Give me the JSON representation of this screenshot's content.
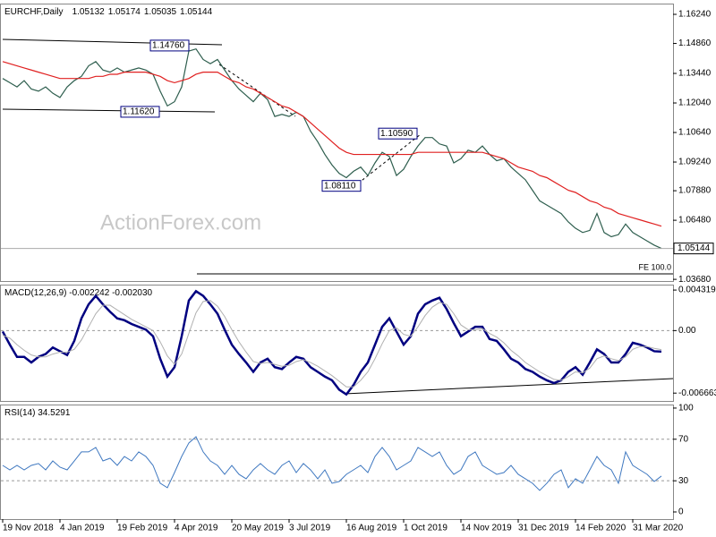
{
  "chart_data": [
    {
      "type": "line",
      "title": "EURCHF,Daily",
      "ohlc_labels": [
        "1.05132",
        "1.05174",
        "1.05035",
        "1.05144"
      ],
      "watermark": "ActionForex.com",
      "ylim": [
        1.036,
        1.1675
      ],
      "yticks": [
        {
          "value": 1.1624,
          "label": "1.16240"
        },
        {
          "value": 1.1486,
          "label": "1.14860"
        },
        {
          "value": 1.1344,
          "label": "1.13440"
        },
        {
          "value": 1.1204,
          "label": "1.12040"
        },
        {
          "value": 1.1064,
          "label": "1.10640"
        },
        {
          "value": 1.0924,
          "label": "1.09240"
        },
        {
          "value": 1.0788,
          "label": "1.07880"
        },
        {
          "value": 1.0648,
          "label": "1.06480"
        },
        {
          "value": 1.0368,
          "label": "1.03680"
        }
      ],
      "last": {
        "value": 1.05144,
        "label": "1.05144"
      },
      "fe_label": "FE 100.0",
      "annotations": [
        {
          "value": 1.1476,
          "label": "1.14760"
        },
        {
          "value": 1.1162,
          "label": "1.11620"
        },
        {
          "value": 1.1059,
          "label": "1.10590"
        },
        {
          "value": 1.0811,
          "label": "1.08110"
        }
      ],
      "series": [
        {
          "color": "#2e5e4e",
          "values": [
            1.132,
            1.13,
            1.128,
            1.131,
            1.127,
            1.126,
            1.128,
            1.125,
            1.123,
            1.128,
            1.131,
            1.133,
            1.138,
            1.14,
            1.136,
            1.135,
            1.137,
            1.135,
            1.136,
            1.137,
            1.136,
            1.134,
            1.126,
            1.119,
            1.121,
            1.128,
            1.145,
            1.146,
            1.141,
            1.139,
            1.141,
            1.136,
            1.131,
            1.127,
            1.124,
            1.121,
            1.125,
            1.122,
            1.114,
            1.115,
            1.114,
            1.116,
            1.114,
            1.107,
            1.102,
            1.096,
            1.091,
            1.087,
            1.085,
            1.088,
            1.09,
            1.086,
            1.092,
            1.097,
            1.095,
            1.086,
            1.089,
            1.095,
            1.1,
            1.104,
            1.104,
            1.101,
            1.1,
            1.092,
            1.094,
            1.098,
            1.097,
            1.1,
            1.096,
            1.093,
            1.094,
            1.09,
            1.087,
            1.084,
            1.079,
            1.074,
            1.072,
            1.07,
            1.068,
            1.064,
            1.061,
            1.059,
            1.06,
            1.068,
            1.059,
            1.057,
            1.058,
            1.063,
            1.059,
            1.057,
            1.055,
            1.053,
            1.05144
          ]
        },
        {
          "color": "#e02020",
          "values": [
            1.14,
            1.139,
            1.138,
            1.137,
            1.136,
            1.135,
            1.134,
            1.133,
            1.132,
            1.132,
            1.132,
            1.132,
            1.132,
            1.133,
            1.133,
            1.134,
            1.134,
            1.135,
            1.135,
            1.135,
            1.135,
            1.134,
            1.133,
            1.131,
            1.13,
            1.131,
            1.132,
            1.134,
            1.135,
            1.135,
            1.135,
            1.133,
            1.131,
            1.13,
            1.128,
            1.127,
            1.125,
            1.123,
            1.121,
            1.119,
            1.118,
            1.116,
            1.114,
            1.111,
            1.108,
            1.105,
            1.102,
            1.099,
            1.097,
            1.096,
            1.096,
            1.096,
            1.096,
            1.096,
            1.096,
            1.096,
            1.096,
            1.096,
            1.097,
            1.097,
            1.097,
            1.097,
            1.097,
            1.097,
            1.097,
            1.097,
            1.097,
            1.097,
            1.096,
            1.095,
            1.094,
            1.092,
            1.09,
            1.089,
            1.088,
            1.086,
            1.085,
            1.083,
            1.081,
            1.079,
            1.078,
            1.076,
            1.074,
            1.073,
            1.071,
            1.07,
            1.068,
            1.067,
            1.066,
            1.065,
            1.064,
            1.063,
            1.062
          ]
        }
      ]
    },
    {
      "type": "line",
      "title": "MACD(12,26,9) -0.002242 -0.002030",
      "ylim": [
        -0.0075,
        0.0049
      ],
      "yticks": [
        0.004319,
        {
          "value": 0,
          "label": "0.00"
        },
        -0.006663
      ],
      "series": [
        {
          "color": "#000080",
          "values": [
            -0.0001,
            -0.0015,
            -0.0028,
            -0.0028,
            -0.0034,
            -0.0028,
            -0.0025,
            -0.0018,
            -0.0022,
            -0.0026,
            -0.0011,
            0.0013,
            0.0028,
            0.0037,
            0.0028,
            0.002,
            0.0013,
            0.0011,
            0.0007,
            0.0004,
            0.0001,
            -0.0006,
            -0.003,
            -0.0049,
            -0.0039,
            -0.0006,
            0.0032,
            0.0042,
            0.0037,
            0.0028,
            0.0018,
            0.0001,
            -0.0015,
            -0.0025,
            -0.0034,
            -0.0044,
            -0.0034,
            -0.003,
            -0.0039,
            -0.0041,
            -0.0034,
            -0.0028,
            -0.003,
            -0.0039,
            -0.0044,
            -0.0049,
            -0.0053,
            -0.0063,
            -0.0068,
            -0.0058,
            -0.0044,
            -0.0034,
            -0.0015,
            0.0004,
            0.0013,
            -0.0001,
            -0.0015,
            -0.0006,
            0.0018,
            0.0028,
            0.0032,
            0.0035,
            0.0023,
            0.0008,
            -0.0006,
            -0.0001,
            0.0004,
            0.0004,
            -0.0009,
            -0.0011,
            -0.002,
            -0.003,
            -0.0034,
            -0.0041,
            -0.0044,
            -0.0049,
            -0.0053,
            -0.0056,
            -0.0053,
            -0.0044,
            -0.0039,
            -0.0047,
            -0.0034,
            -0.002,
            -0.0025,
            -0.0034,
            -0.0034,
            -0.0025,
            -0.0013,
            -0.0015,
            -0.0018,
            -0.0022,
            -0.002242
          ]
        },
        {
          "color": "#b0b0b0",
          "values": [
            -0.0005,
            -0.0008,
            -0.0015,
            -0.0021,
            -0.0026,
            -0.0028,
            -0.0028,
            -0.0025,
            -0.0023,
            -0.0023,
            -0.002,
            -0.001,
            0.0004,
            0.0018,
            0.0027,
            0.0027,
            0.0022,
            0.0017,
            0.0012,
            0.0008,
            0.0004,
            0.0,
            -0.0012,
            -0.0027,
            -0.0036,
            -0.0025,
            -0.0003,
            0.0019,
            0.0031,
            0.0032,
            0.0026,
            0.0015,
            0.0001,
            -0.0012,
            -0.0023,
            -0.0033,
            -0.0035,
            -0.0034,
            -0.0036,
            -0.0038,
            -0.0037,
            -0.0033,
            -0.0031,
            -0.0034,
            -0.0038,
            -0.0043,
            -0.0048,
            -0.0054,
            -0.006,
            -0.006,
            -0.0053,
            -0.0044,
            -0.003,
            -0.0014,
            0.0,
            0.0003,
            -0.0004,
            -0.0006,
            0.0004,
            0.0016,
            0.0025,
            0.003,
            0.0028,
            0.0018,
            0.0006,
            0.0001,
            0.0001,
            0.0002,
            -0.0003,
            -0.0007,
            -0.0013,
            -0.0021,
            -0.0027,
            -0.0034,
            -0.0039,
            -0.0044,
            -0.0048,
            -0.0052,
            -0.0053,
            -0.0049,
            -0.0044,
            -0.0045,
            -0.004,
            -0.003,
            -0.0027,
            -0.003,
            -0.0032,
            -0.0028,
            -0.002,
            -0.0017,
            -0.0017,
            -0.0019,
            -0.00203
          ]
        }
      ]
    },
    {
      "type": "line",
      "title": "RSI(14) 34.5291",
      "ylim": [
        -6.9,
        103.4
      ],
      "yticks": [
        100,
        70,
        30,
        0
      ],
      "levels": [
        70,
        30
      ],
      "categories": [
        "19 Nov 2018",
        null,
        null,
        null,
        null,
        null,
        null,
        null,
        "4 Jan 2019",
        null,
        null,
        null,
        null,
        null,
        null,
        null,
        "19 Feb 2019",
        null,
        null,
        null,
        null,
        null,
        null,
        null,
        "4 Apr 2019",
        null,
        null,
        null,
        null,
        null,
        null,
        null,
        "20 May 2019",
        null,
        null,
        null,
        null,
        null,
        null,
        null,
        "3 Jul 2019",
        null,
        null,
        null,
        null,
        null,
        null,
        null,
        "16 Aug 2019",
        null,
        null,
        null,
        null,
        null,
        null,
        null,
        "1 Oct 2019",
        null,
        null,
        null,
        null,
        null,
        null,
        null,
        "14 Nov 2019",
        null,
        null,
        null,
        null,
        null,
        null,
        null,
        "31 Dec 2019",
        null,
        null,
        null,
        null,
        null,
        null,
        null,
        "14 Feb 2020",
        null,
        null,
        null,
        null,
        null,
        null,
        null,
        "31 Mar 2020",
        null,
        null,
        null,
        null
      ],
      "series": [
        {
          "color": "#3f78c0",
          "values": [
            44.8,
            40.5,
            44.8,
            40.5,
            44.8,
            46.6,
            40.5,
            49.1,
            43.1,
            40.5,
            49.1,
            57.8,
            57.8,
            62.1,
            49.1,
            51.7,
            44.8,
            53.4,
            49.1,
            57.8,
            53.4,
            44.8,
            27.6,
            23.3,
            37.9,
            53.4,
            66.4,
            72.4,
            57.8,
            49.1,
            44.8,
            36.2,
            44.8,
            36.2,
            31.9,
            40.5,
            46.6,
            40.5,
            36.2,
            44.8,
            49.1,
            37.9,
            46.6,
            40.5,
            31.9,
            40.5,
            27.6,
            29.3,
            36.2,
            40.5,
            44.8,
            37.9,
            53.4,
            62.1,
            53.4,
            40.5,
            44.8,
            49.1,
            62.1,
            57.8,
            53.4,
            57.8,
            44.8,
            36.2,
            40.5,
            53.4,
            57.8,
            44.8,
            40.5,
            36.2,
            37.9,
            44.8,
            36.2,
            31.9,
            27.6,
            20.7,
            27.6,
            36.2,
            40.5,
            23.3,
            31.9,
            27.6,
            40.5,
            53.4,
            44.8,
            40.5,
            27.6,
            57.8,
            44.8,
            40.5,
            36.2,
            29.3,
            34.5291
          ]
        }
      ]
    }
  ]
}
